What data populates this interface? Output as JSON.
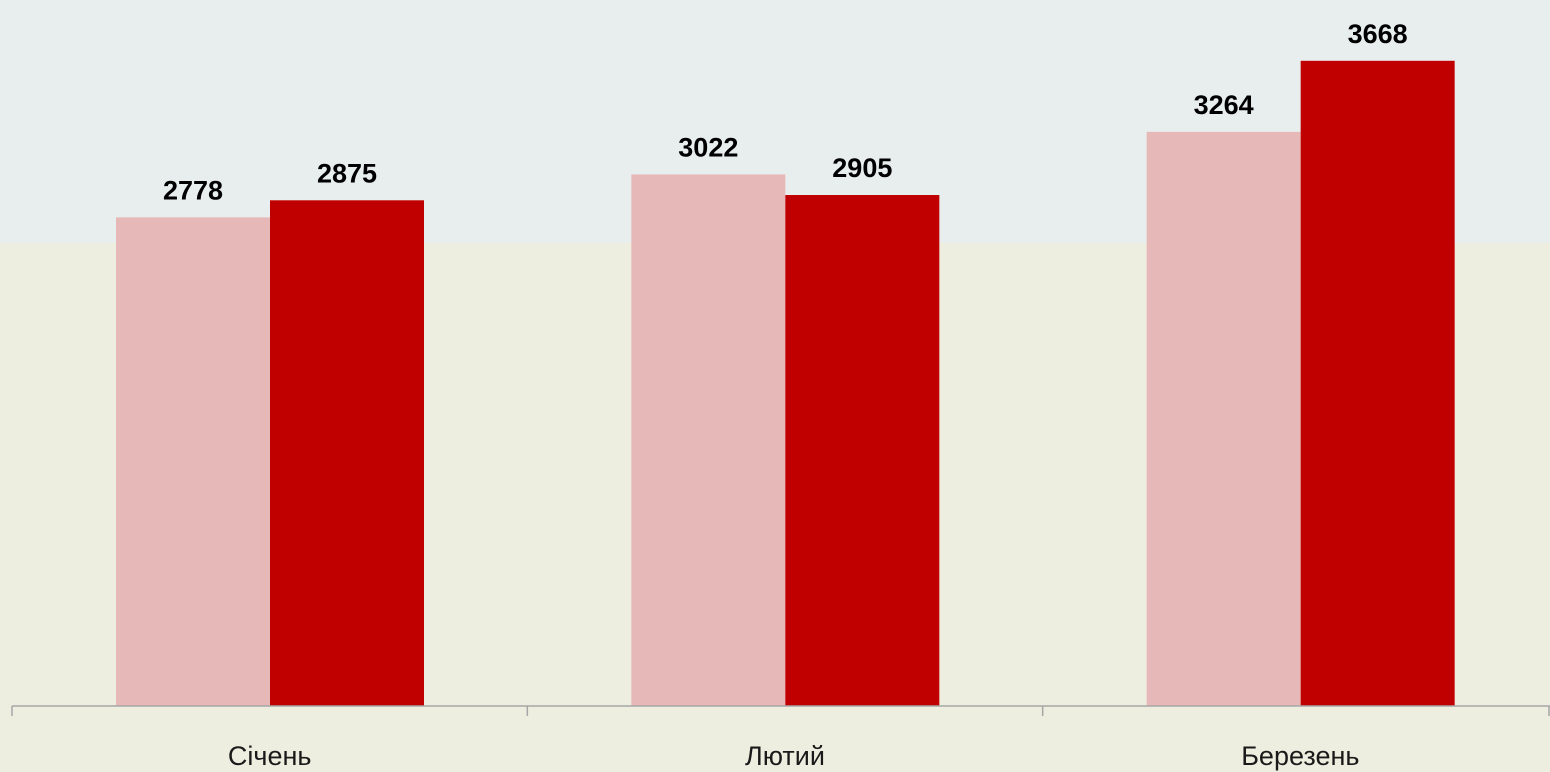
{
  "colors": {
    "background_top": "#e8eeee",
    "background_bottom": "#eeeee0",
    "series_1": "#e6b8b8",
    "series_2": "#c00000",
    "axis": "#a6a6a6"
  },
  "chart_data": {
    "type": "bar",
    "title": "",
    "xlabel": "",
    "ylabel": "",
    "categories": [
      "Січень",
      "Лютий",
      "Березень"
    ],
    "series": [
      {
        "values": [
          2778,
          3022,
          3264
        ]
      },
      {
        "values": [
          2875,
          2905,
          3668
        ]
      }
    ],
    "ylim": [
      0,
      3800
    ],
    "grid": false,
    "legend": "none",
    "data_labels": true
  }
}
